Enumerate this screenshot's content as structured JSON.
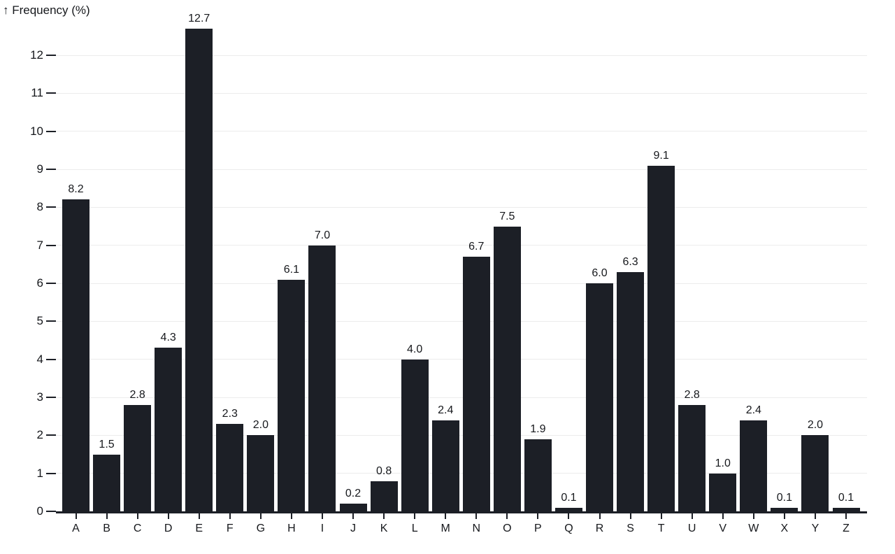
{
  "page": {
    "background": "#ffffff"
  },
  "chart_data": {
    "type": "bar",
    "title": "↑ Frequency (%)",
    "ylabel": "Frequency (%)",
    "xlabel": "",
    "categories": [
      "A",
      "B",
      "C",
      "D",
      "E",
      "F",
      "G",
      "H",
      "I",
      "J",
      "K",
      "L",
      "M",
      "N",
      "O",
      "P",
      "Q",
      "R",
      "S",
      "T",
      "U",
      "V",
      "W",
      "X",
      "Y",
      "Z"
    ],
    "values": [
      8.2,
      1.5,
      2.8,
      4.3,
      12.7,
      2.3,
      2.0,
      6.1,
      7.0,
      0.2,
      0.8,
      4.0,
      2.4,
      6.7,
      7.5,
      1.9,
      0.1,
      6.0,
      6.3,
      9.1,
      2.8,
      1.0,
      2.4,
      0.1,
      2.0,
      0.1
    ],
    "value_labels": [
      "8.2",
      "1.5",
      "2.8",
      "4.3",
      "12.7",
      "2.3",
      "2.0",
      "6.1",
      "7.0",
      "0.2",
      "0.8",
      "4.0",
      "2.4",
      "6.7",
      "7.5",
      "1.9",
      "0.1",
      "6.0",
      "6.3",
      "9.1",
      "2.8",
      "1.0",
      "2.4",
      "0.1",
      "2.0",
      "0.1"
    ],
    "ylim": [
      0,
      12.7
    ],
    "yticks": [
      0,
      1,
      2,
      3,
      4,
      5,
      6,
      7,
      8,
      9,
      10,
      11,
      12
    ],
    "grid": true,
    "legend": false,
    "bar_labels_shown": true,
    "colors": {
      "bar": "#1c1f26",
      "grid": "#ececec",
      "axis": "#1c1f26",
      "text": "#16181c",
      "background": "#ffffff"
    }
  }
}
